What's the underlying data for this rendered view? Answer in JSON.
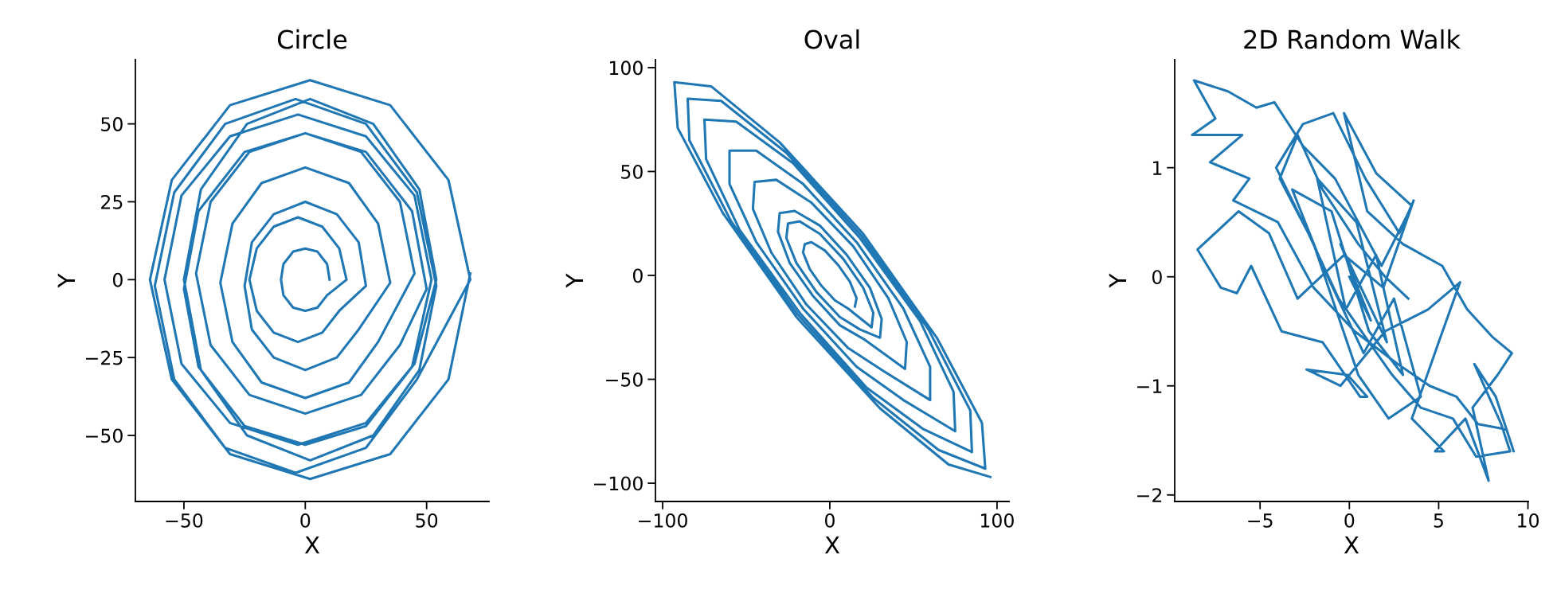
{
  "chart_data": [
    {
      "type": "line",
      "title": "Circle",
      "xlabel": "X",
      "ylabel": "Y",
      "xlim": [
        -70,
        75.7
      ],
      "ylim": [
        -71.2,
        70.6
      ],
      "xticks": [
        {
          "value": -50,
          "label": "−50"
        },
        0,
        50
      ],
      "yticks": [
        {
          "value": -50,
          "label": "−50"
        },
        {
          "value": -25,
          "label": "−25"
        },
        0,
        25,
        50
      ],
      "series": [
        {
          "color": "#1f77b4",
          "x": [
            10,
            9,
            5,
            0,
            -5,
            -9,
            -10,
            -9,
            -5,
            0,
            5,
            9,
            17,
            14,
            7,
            -3,
            -13,
            -20,
            -23,
            -20,
            -13,
            -3,
            7,
            14,
            25,
            22,
            13,
            0,
            -13,
            -22,
            -25,
            -22,
            -13,
            0,
            13,
            22,
            35,
            30,
            18,
            0,
            -18,
            -30,
            -35,
            -30,
            -18,
            0,
            18,
            30,
            45,
            39,
            23,
            0,
            -23,
            -39,
            -45,
            -39,
            -23,
            0,
            23,
            39,
            50,
            44,
            25,
            0,
            -25,
            -44,
            -50,
            -44,
            -25,
            0,
            25,
            44,
            52,
            45,
            25,
            -3,
            -31,
            -51,
            -58,
            -51,
            -31,
            -3,
            25,
            45,
            54,
            47,
            28,
            2,
            -24,
            -43,
            -50,
            -43,
            -24,
            2,
            28,
            47,
            54,
            46,
            25,
            -4,
            -33,
            -54,
            -62,
            -54,
            -33,
            -4,
            25,
            46,
            68,
            59,
            35,
            2,
            -31,
            -55,
            -64,
            -55,
            -31,
            2,
            35,
            59,
            68
          ],
          "values": [
            0,
            5,
            9,
            10,
            9,
            5,
            0,
            -5,
            -9,
            -10,
            -9,
            -5,
            0,
            10,
            17,
            20,
            17,
            10,
            0,
            -10,
            -17,
            -20,
            -17,
            -10,
            -2,
            12,
            21,
            25,
            21,
            12,
            -2,
            -16,
            -25,
            -29,
            -25,
            -16,
            -1,
            18,
            31,
            36,
            31,
            18,
            -1,
            -20,
            -33,
            -38,
            -33,
            -20,
            2,
            25,
            41,
            47,
            41,
            25,
            2,
            -21,
            -37,
            -43,
            -37,
            -21,
            -3,
            22,
            41,
            47,
            41,
            22,
            -3,
            -28,
            -47,
            -53,
            -47,
            -28,
            0,
            27,
            46,
            53,
            46,
            27,
            0,
            -27,
            -46,
            -53,
            -46,
            -27,
            0,
            29,
            50,
            58,
            50,
            29,
            0,
            -29,
            -50,
            -58,
            -50,
            -29,
            -2,
            28,
            50,
            58,
            50,
            28,
            -2,
            -32,
            -54,
            -62,
            -54,
            -32,
            0,
            32,
            56,
            64,
            56,
            32,
            0,
            -32,
            -56,
            -64,
            -56,
            -32,
            2
          ]
        }
      ]
    },
    {
      "type": "line",
      "title": "Oval",
      "xlabel": "X",
      "ylabel": "Y",
      "xlim": [
        -104.3,
        107.2
      ],
      "ylim": [
        -108.8,
        103.8
      ],
      "xticks": [
        {
          "value": -100,
          "label": "−100"
        },
        0,
        100
      ],
      "yticks": [
        {
          "value": -100,
          "label": "−100"
        },
        {
          "value": -50,
          "label": "−50"
        },
        0,
        50,
        100
      ],
      "series": [
        {
          "color": "#1f77b4",
          "x": [
            15,
            16,
            12,
            5,
            -3,
            -11,
            -15,
            -16,
            -12,
            -5,
            3,
            11,
            25,
            26,
            20,
            8,
            -6,
            -18,
            -25,
            -26,
            -20,
            -8,
            6,
            18,
            30,
            31,
            24,
            10,
            -6,
            -21,
            -30,
            -31,
            -24,
            -10,
            6,
            21,
            45,
            46,
            35,
            14,
            -11,
            -32,
            -45,
            -46,
            -35,
            -14,
            11,
            32,
            60,
            60,
            44,
            16,
            -16,
            -44,
            -60,
            -60,
            -44,
            -16,
            16,
            44,
            75,
            74,
            54,
            18,
            -22,
            -56,
            -75,
            -74,
            -54,
            -18,
            22,
            56,
            85,
            84,
            59,
            19,
            -26,
            -65,
            -85,
            -84,
            -59,
            -19,
            26,
            65,
            93,
            91,
            64,
            20,
            -30,
            -71,
            -93,
            -91,
            -64,
            -20,
            30,
            71,
            96
          ],
          "values": [
            -15,
            -11,
            -3,
            5,
            12,
            16,
            15,
            11,
            3,
            -5,
            -12,
            -16,
            -25,
            -18,
            -6,
            8,
            20,
            26,
            25,
            18,
            6,
            -8,
            -20,
            -26,
            -30,
            -21,
            -6,
            10,
            24,
            31,
            30,
            21,
            6,
            -10,
            -24,
            -31,
            -45,
            -32,
            -11,
            14,
            35,
            46,
            45,
            32,
            11,
            -14,
            -35,
            -46,
            -60,
            -44,
            -16,
            16,
            44,
            60,
            60,
            44,
            16,
            -16,
            -44,
            -60,
            -75,
            -56,
            -22,
            18,
            54,
            74,
            75,
            56,
            22,
            -18,
            -54,
            -74,
            -85,
            -65,
            -26,
            19,
            59,
            84,
            85,
            65,
            26,
            -19,
            -59,
            -84,
            -93,
            -71,
            -30,
            20,
            64,
            91,
            93,
            71,
            30,
            -20,
            -64,
            -91,
            -97
          ]
        }
      ]
    },
    {
      "type": "line",
      "title": "2D Random Walk",
      "xlabel": "X",
      "ylabel": "Y",
      "xlim": [
        -9.78,
        10.02
      ],
      "ylim": [
        -2.06,
        1.99
      ],
      "xticks": [
        {
          "value": -5,
          "label": "−5"
        },
        0,
        5,
        10
      ],
      "yticks": [
        {
          "value": -2,
          "label": "−2"
        },
        {
          "value": -1,
          "label": "−1"
        },
        0,
        1
      ],
      "series": [
        {
          "color": "#1f77b4",
          "x": [
            0,
            1.2,
            -0.5,
            2.1,
            0.4,
            -1.8,
            -0.2,
            1.5,
            3.0,
            1.1,
            -1.0,
            -3.2,
            -1.5,
            0.8,
            2.5,
            4.0,
            2.2,
            0.5,
            -2.0,
            -4.1,
            -2.6,
            -0.9,
            0.9,
            2.8,
            3.6,
            1.9,
            -0.3,
            -2.9,
            -4.5,
            -6.2,
            -8.5,
            -7.2,
            -6.3,
            -5.5,
            -3.8,
            -1.5,
            0.6,
            1.0,
            -0.1,
            -2.4,
            -0.5,
            2.0,
            4.4,
            6.2,
            5.0,
            3.5,
            5.3,
            4.8,
            6.5,
            7.8,
            6.9,
            8.3,
            9.1,
            8.0,
            6.6,
            5.2,
            3.0,
            1.0,
            -0.3,
            1.5,
            3.5,
            1.8,
            -0.8,
            -2.6,
            -4.2,
            -5.2,
            -6.8,
            -8.7,
            -7.5,
            -8.8,
            -6.0,
            -7.8,
            -5.6,
            -6.5,
            -4.0,
            -2.0,
            0.3,
            2.7,
            4.5,
            6.0,
            7.2,
            8.8,
            9.2,
            8.2,
            7.0,
            8.5,
            9.0,
            7.1,
            5.8,
            4.0,
            2.4,
            1.1,
            -0.6,
            -2.3,
            -3.9,
            -2.9,
            -1.5,
            0.5,
            2.0,
            3.3
          ],
          "values": [
            0,
            -0.4,
            0.3,
            -0.6,
            0.5,
            0.9,
            -0.3,
            0.2,
            -0.9,
            -0.5,
            0.6,
            0.8,
            0.1,
            -0.7,
            -0.2,
            -1.1,
            -1.3,
            -0.9,
            0.3,
            1.0,
            1.4,
            1.5,
            0.9,
            0.4,
            0.7,
            -0.1,
            0.2,
            -0.2,
            0.4,
            0.6,
            0.25,
            -0.1,
            -0.15,
            0.1,
            -0.5,
            -0.6,
            -1.1,
            -1.1,
            -0.9,
            -0.85,
            -1.0,
            -0.5,
            -0.3,
            -0.05,
            -0.6,
            -1.3,
            -1.6,
            -1.6,
            -1.3,
            -1.87,
            -1.2,
            -0.9,
            -0.7,
            -0.55,
            -0.3,
            0.1,
            0.3,
            0.6,
            1.5,
            0.95,
            0.65,
            0.1,
            0.9,
            1.2,
            1.6,
            1.55,
            1.7,
            1.8,
            1.45,
            1.3,
            1.3,
            1.05,
            0.9,
            0.7,
            0.5,
            -0.1,
            -0.5,
            -0.8,
            -1.0,
            -1.1,
            -1.35,
            -1.4,
            -1.6,
            -1.1,
            -0.8,
            -1.35,
            -1.6,
            -1.65,
            -1.3,
            -1.2,
            -0.9,
            -0.6,
            -0.2,
            0.4,
            0.9,
            1.3,
            0.8,
            0.3,
            0.0,
            -0.2
          ]
        }
      ]
    }
  ]
}
